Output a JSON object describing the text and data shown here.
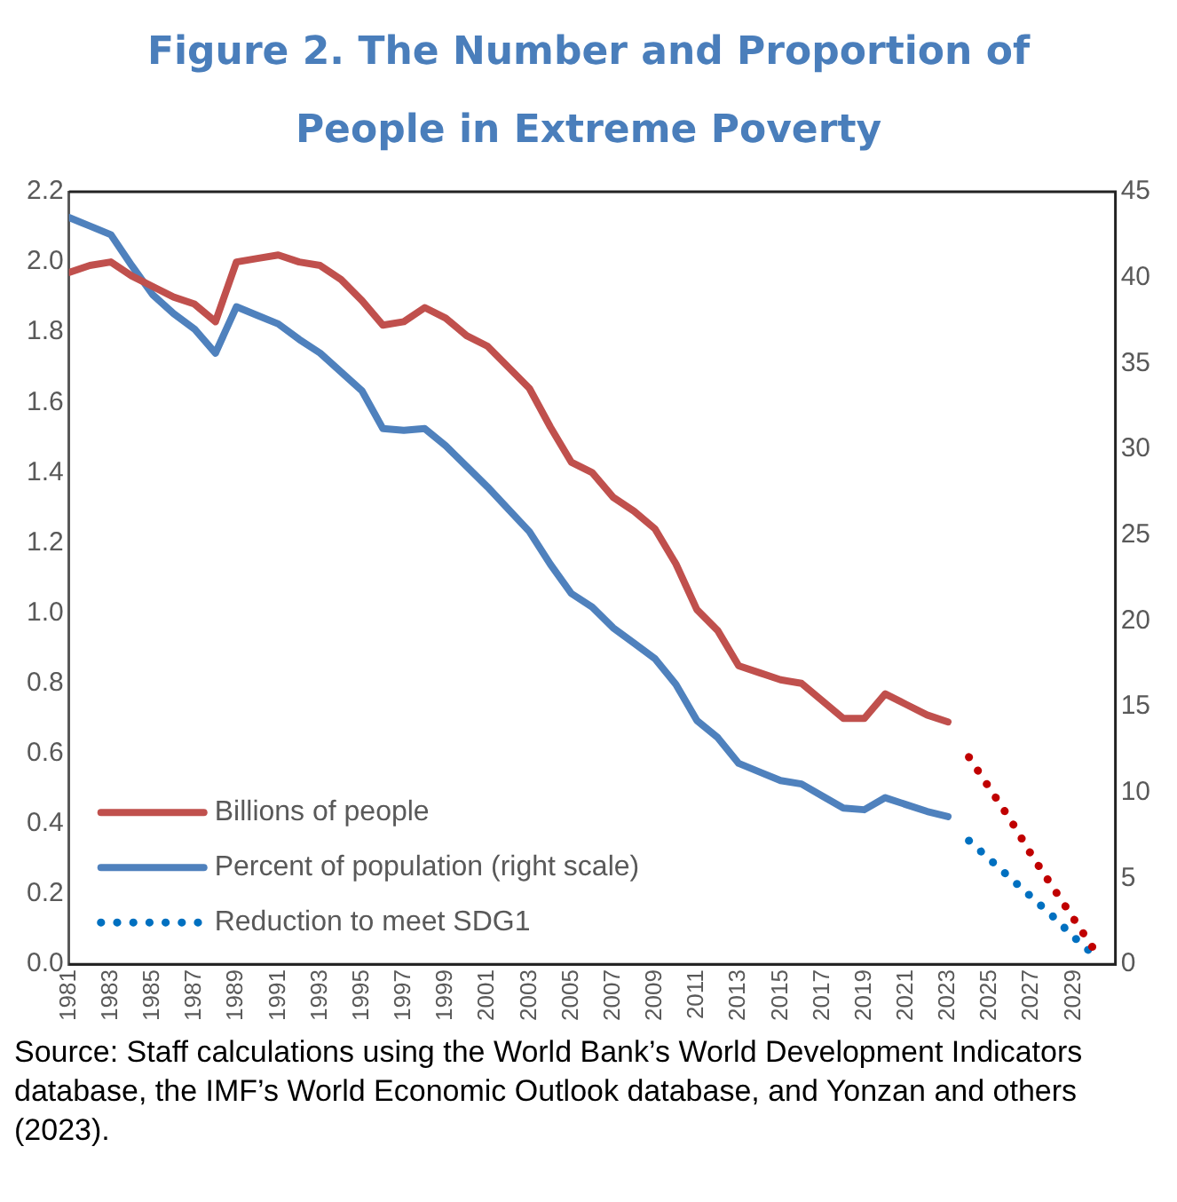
{
  "chart_data": {
    "type": "line",
    "title": "Figure 2. The Number and Proportion of People in Extreme Poverty",
    "x": [
      1981,
      1982,
      1983,
      1984,
      1985,
      1986,
      1987,
      1988,
      1989,
      1990,
      1991,
      1992,
      1993,
      1994,
      1995,
      1996,
      1997,
      1998,
      1999,
      2000,
      2001,
      2002,
      2003,
      2004,
      2005,
      2006,
      2007,
      2008,
      2009,
      2010,
      2011,
      2012,
      2013,
      2014,
      2015,
      2016,
      2017,
      2018,
      2019,
      2020,
      2021,
      2022,
      2023
    ],
    "series": [
      {
        "name": "Billions of people",
        "color": "#c0504d",
        "line_style": "solid",
        "values": [
          1.97,
          1.99,
          2.0,
          1.96,
          1.93,
          1.9,
          1.88,
          1.83,
          2.0,
          2.01,
          2.02,
          2.0,
          1.99,
          1.95,
          1.89,
          1.82,
          1.83,
          1.87,
          1.84,
          1.79,
          1.76,
          1.7,
          1.64,
          1.53,
          1.43,
          1.4,
          1.33,
          1.29,
          1.24,
          1.14,
          1.01,
          0.95,
          0.85,
          0.83,
          0.81,
          0.8,
          0.75,
          0.7,
          0.7,
          0.77,
          0.74,
          0.71,
          0.69
        ]
      },
      {
        "name": "Percent of population (right scale)",
        "color": "#4f81bd",
        "line_style": "solid",
        "axis": "y2",
        "values": [
          43.5,
          43.0,
          42.5,
          40.7,
          39.0,
          37.9,
          37.0,
          35.6,
          38.3,
          37.8,
          37.3,
          36.4,
          35.6,
          34.5,
          33.4,
          31.2,
          31.1,
          31.2,
          30.2,
          29.0,
          27.8,
          26.5,
          25.2,
          23.3,
          21.6,
          20.8,
          19.6,
          18.7,
          17.8,
          16.3,
          14.2,
          13.2,
          11.7,
          11.2,
          10.7,
          10.5,
          9.8,
          9.1,
          9.0,
          9.7,
          9.3,
          8.9,
          8.6
        ]
      },
      {
        "color": "#c00000",
        "line_style": "dotted",
        "x": [
          2024,
          2025,
          2026,
          2027,
          2028,
          2029,
          2030
        ],
        "values": [
          0.59,
          0.5,
          0.41,
          0.31,
          0.22,
          0.13,
          0.04
        ]
      },
      {
        "name": "Reduction to meet SDG1",
        "color": "#0070c0",
        "line_style": "dotted",
        "axis": "y2",
        "x": [
          2024,
          2025,
          2026,
          2027,
          2028,
          2029,
          2030
        ],
        "values": [
          7.2,
          6.1,
          5.0,
          3.9,
          2.8,
          1.6,
          0.5
        ]
      }
    ],
    "xlim": [
      1981,
      2031
    ],
    "xticks": [
      1981,
      1983,
      1985,
      1987,
      1989,
      1991,
      1993,
      1995,
      1997,
      1999,
      2001,
      2003,
      2005,
      2007,
      2009,
      2011,
      2013,
      2015,
      2017,
      2019,
      2021,
      2023,
      2025,
      2027,
      2029
    ],
    "ylim": [
      0,
      2.2
    ],
    "yticks": [
      {
        "value": 0,
        "label": "0.0"
      },
      0.2,
      0.4,
      0.6,
      0.8,
      {
        "value": 1,
        "label": "1.0"
      },
      1.2,
      1.4,
      1.6,
      1.8,
      {
        "value": 2,
        "label": "2.0"
      },
      2.2
    ],
    "y2lim": [
      0,
      45
    ],
    "y2ticks": [
      0,
      5,
      10,
      15,
      20,
      25,
      30,
      35,
      40,
      45
    ],
    "grid": false,
    "legend": "bottom left",
    "annotations": [
      "Source: Staff calculations using the World Bank’s World Development Indicators database, the IMF’s World Economic Outlook database, and Yonzan and others (2023)."
    ]
  }
}
